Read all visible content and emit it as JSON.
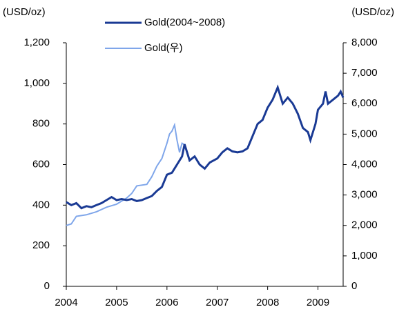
{
  "chart_data": {
    "type": "line",
    "y_label": "(USD/oz)",
    "y2_label": "(USD/oz)",
    "xlim": [
      2004,
      2009.5
    ],
    "xticks": [
      2004,
      2005,
      2006,
      2007,
      2008,
      2009
    ],
    "ylim": [
      0,
      1200
    ],
    "yticks": [
      0,
      200,
      400,
      600,
      800,
      {
        "value": 1000,
        "label": "1,000"
      },
      {
        "value": 1200,
        "label": "1,200"
      }
    ],
    "y2lim": [
      0,
      8000
    ],
    "y2ticks": [
      0,
      {
        "value": 1000,
        "label": "1,000"
      },
      {
        "value": 2000,
        "label": "2,000"
      },
      {
        "value": 3000,
        "label": "3,000"
      },
      {
        "value": 4000,
        "label": "4,000"
      },
      {
        "value": 5000,
        "label": "5,000"
      },
      {
        "value": 6000,
        "label": "6,000"
      },
      {
        "value": 7000,
        "label": "7,000"
      },
      {
        "value": 8000,
        "label": "8,000"
      }
    ],
    "grid": false,
    "series": [
      {
        "name": "Gold(2004~2008)",
        "color": "#1a3a94",
        "x": [
          2004.0,
          2004.1,
          2004.2,
          2004.3,
          2004.4,
          2004.5,
          2004.6,
          2004.7,
          2004.8,
          2004.9,
          2005.0,
          2005.1,
          2005.2,
          2005.3,
          2005.4,
          2005.5,
          2005.6,
          2005.7,
          2005.8,
          2005.9,
          2006.0,
          2006.1,
          2006.2,
          2006.3,
          2006.35,
          2006.45,
          2006.55,
          2006.65,
          2006.75,
          2006.85,
          2007.0,
          2007.1,
          2007.2,
          2007.3,
          2007.4,
          2007.5,
          2007.6,
          2007.7,
          2007.8,
          2007.9,
          2008.0,
          2008.1,
          2008.2,
          2008.3,
          2008.4,
          2008.5,
          2008.6,
          2008.7,
          2008.8,
          2008.85,
          2008.95,
          2009.0,
          2009.1,
          2009.15,
          2009.2,
          2009.3,
          2009.4,
          2009.45,
          2009.5
        ],
        "values": [
          415,
          400,
          410,
          385,
          395,
          390,
          400,
          410,
          425,
          440,
          425,
          430,
          425,
          430,
          420,
          425,
          435,
          445,
          470,
          490,
          550,
          560,
          600,
          640,
          700,
          620,
          640,
          600,
          580,
          610,
          630,
          660,
          680,
          665,
          660,
          665,
          680,
          740,
          800,
          820,
          880,
          920,
          980,
          900,
          930,
          900,
          850,
          780,
          760,
          720,
          800,
          870,
          900,
          960,
          900,
          920,
          940,
          960,
          930
        ]
      },
      {
        "name": "Gold(우)",
        "color": "#7fa6ea",
        "axis": "y2",
        "x": [
          2004.0,
          2004.1,
          2004.2,
          2004.4,
          2004.6,
          2004.8,
          2005.0,
          2005.2,
          2005.3,
          2005.4,
          2005.6,
          2005.7,
          2005.8,
          2005.9,
          2006.0,
          2006.05,
          2006.1,
          2006.15,
          2006.2,
          2006.25,
          2006.3,
          2006.35
        ],
        "values": [
          2000,
          2050,
          2300,
          2350,
          2450,
          2600,
          2700,
          2900,
          3050,
          3300,
          3350,
          3600,
          3950,
          4200,
          4700,
          5000,
          5100,
          5300,
          4800,
          4400,
          4700,
          4650
        ]
      }
    ]
  }
}
